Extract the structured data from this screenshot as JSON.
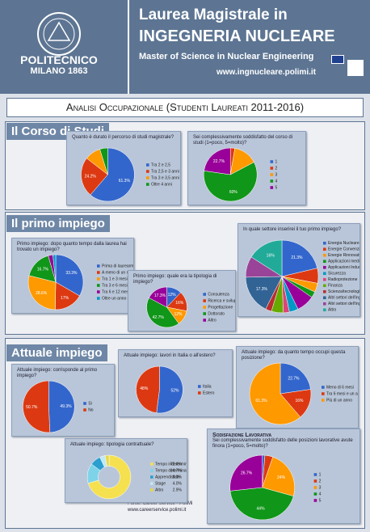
{
  "header": {
    "school": "POLITECNICO",
    "city": "MILANO 1863",
    "line1": "Laurea Magistrale in",
    "line2": "INGEGNERIA NUCLEARE",
    "line3": "Master of Science in Nuclear Engineering",
    "url": "www.ingnucleare.polimi.it"
  },
  "title": "Analisi Occupazionale (Studenti Laureati 2011-2016)",
  "sections": [
    "Il Corso di Studi",
    "Il primo impiego",
    "Attuale impiego"
  ],
  "source": [
    "Fonte: Career Service - PoliMi",
    "www.careerservice.polimi.it"
  ],
  "chart_data": [
    {
      "type": "pie",
      "title": "Quanto è durato il percorso di studi magistrale?",
      "categories": [
        "Tra 2 e 2,5",
        "Tra 2,5 e 3 anni",
        "Tra 3 e 3,5 anni",
        "Oltre 4 anni"
      ],
      "values": [
        61.3,
        24.2,
        9.7,
        4.8
      ],
      "value_labels": [
        "61.3%",
        "24.2%",
        null,
        null
      ],
      "colors": [
        "#3366cc",
        "#dc3912",
        "#ff9900",
        "#109618"
      ]
    },
    {
      "type": "pie",
      "title": "Sei complessivamente soddisfatto del corso di studi (1=poco, 5=molto)?",
      "categories": [
        "1",
        "2",
        "3",
        "4",
        "5"
      ],
      "values": [
        0,
        2.7,
        14.6,
        60,
        22.7
      ],
      "value_labels": [
        null,
        null,
        null,
        "60%",
        "22.7%"
      ],
      "colors": [
        "#3366cc",
        "#dc3912",
        "#ff9900",
        "#109618",
        "#990099"
      ]
    },
    {
      "type": "pie",
      "title": "Primo impiego: dopo quanto tempo dalla laurea hai trovato un impiego?",
      "categories": [
        "Prima di laurearmi",
        "A meno di un mese dalla laurea",
        "Tra 1 e 3 mesi dalla laurea",
        "Tra 3 e 6 mesi dalla laurea",
        "Tra 6 e 12 mesi dalla laurea",
        "Oltre un anno dalla laurea"
      ],
      "values": [
        33.3,
        17,
        28.6,
        16.7,
        2.7,
        1.7
      ],
      "value_labels": [
        "33.3%",
        "17%",
        "28.6%",
        "16.7%",
        null,
        null
      ],
      "colors": [
        "#3366cc",
        "#dc3912",
        "#ff9900",
        "#109618",
        "#990099",
        "#0099c6"
      ]
    },
    {
      "type": "pie",
      "title": "Primo impiego: quale era la tipologia di impiego?",
      "categories": [
        "Consulenza",
        "Ricerca e sviluppo",
        "Progettazione",
        "Dottorato",
        "Altro"
      ],
      "values": [
        12,
        16,
        12,
        42.7,
        17.3
      ],
      "value_labels": [
        "12%",
        "16%",
        "12%",
        "42.7%",
        "17.3%"
      ],
      "colors": [
        "#3366cc",
        "#dc3912",
        "#ff9900",
        "#109618",
        "#990099"
      ]
    },
    {
      "type": "pie",
      "title": "In quale settore inserirei il tuo primo impiego?",
      "categories": [
        "Energia Nucleare",
        "Energie Convenzionali",
        "Energie Rinnovabili",
        "Applicazioni medicali nucleari",
        "Applicazioni Industriali nucleari",
        "Sicurezza",
        "Radioprotezione",
        "Finanza",
        "Scienza/tecnologia dei materiali",
        "Altri settori dell'ingegneria industriale",
        "Altri settori dell'ingegneria dell'informazione",
        "Altro"
      ],
      "values": [
        21.3,
        6.7,
        4,
        2.7,
        8,
        4,
        2.7,
        5.3,
        2.7,
        17.3,
        9.3,
        16
      ],
      "value_labels": [
        "21.3%",
        null,
        null,
        null,
        null,
        null,
        null,
        null,
        null,
        "17.3%",
        null,
        "16%"
      ],
      "colors": [
        "#3366cc",
        "#dc3912",
        "#ff9900",
        "#109618",
        "#990099",
        "#0099c6",
        "#dd4477",
        "#66aa00",
        "#b82e2e",
        "#316395",
        "#994499",
        "#22aa99"
      ]
    },
    {
      "type": "pie",
      "title": "Attuale impiego: corrisponde al primo impiego?",
      "categories": [
        "Sì",
        "No"
      ],
      "values": [
        49.3,
        50.7
      ],
      "value_labels": [
        "49.3%",
        "50.7%"
      ],
      "colors": [
        "#3366cc",
        "#dc3912"
      ]
    },
    {
      "type": "pie",
      "title": "Attuale impiego: lavori in Italia o all'estero?",
      "categories": [
        "Italia",
        "Estero"
      ],
      "values": [
        52,
        48
      ],
      "value_labels": [
        "52%",
        "48%"
      ],
      "colors": [
        "#3366cc",
        "#dc3912"
      ]
    },
    {
      "type": "pie",
      "title": "Attuale impiego: da quanto tempo occupi questa posizione?",
      "categories": [
        "Meno di 6 mesi",
        "Tra 6 mesi e un anno",
        "Più di un anno"
      ],
      "values": [
        22.7,
        16,
        61.3
      ],
      "value_labels": [
        "22.7%",
        "16%",
        "61.3%"
      ],
      "colors": [
        "#3366cc",
        "#dc3912",
        "#ff9900"
      ]
    },
    {
      "type": "pie",
      "donut": true,
      "title": "Attuale impiego: tipologia contrattuale?",
      "categories": [
        "Tempo indeterminato",
        "Tempo determinato",
        "Apprendistato",
        "Stage",
        "Altro"
      ],
      "values": [
        70.4,
        14.7,
        8,
        4,
        2.9
      ],
      "value_labels": [
        "70.4%",
        "14.7%",
        "8.0%",
        "4.0%",
        "2.9%"
      ],
      "legend_values": true,
      "colors": [
        "#f5e050",
        "#7fd3e8",
        "#2b9fcf",
        "#bfe9f5",
        "#e6d74a"
      ]
    },
    {
      "type": "pie",
      "title": "Sodisfazione Lavorativa",
      "subtitle": "Sei complessivamente soddisfatto delle posizioni lavorative avute finora (1=poco, 5=molto)?",
      "categories": [
        "1",
        "2",
        "3",
        "4",
        "5"
      ],
      "values": [
        1.3,
        4,
        24,
        44,
        26.7
      ],
      "value_labels": [
        null,
        null,
        "24%",
        "44%",
        "26.7%"
      ],
      "colors": [
        "#3366cc",
        "#dc3912",
        "#ff9900",
        "#109618",
        "#990099"
      ]
    }
  ]
}
